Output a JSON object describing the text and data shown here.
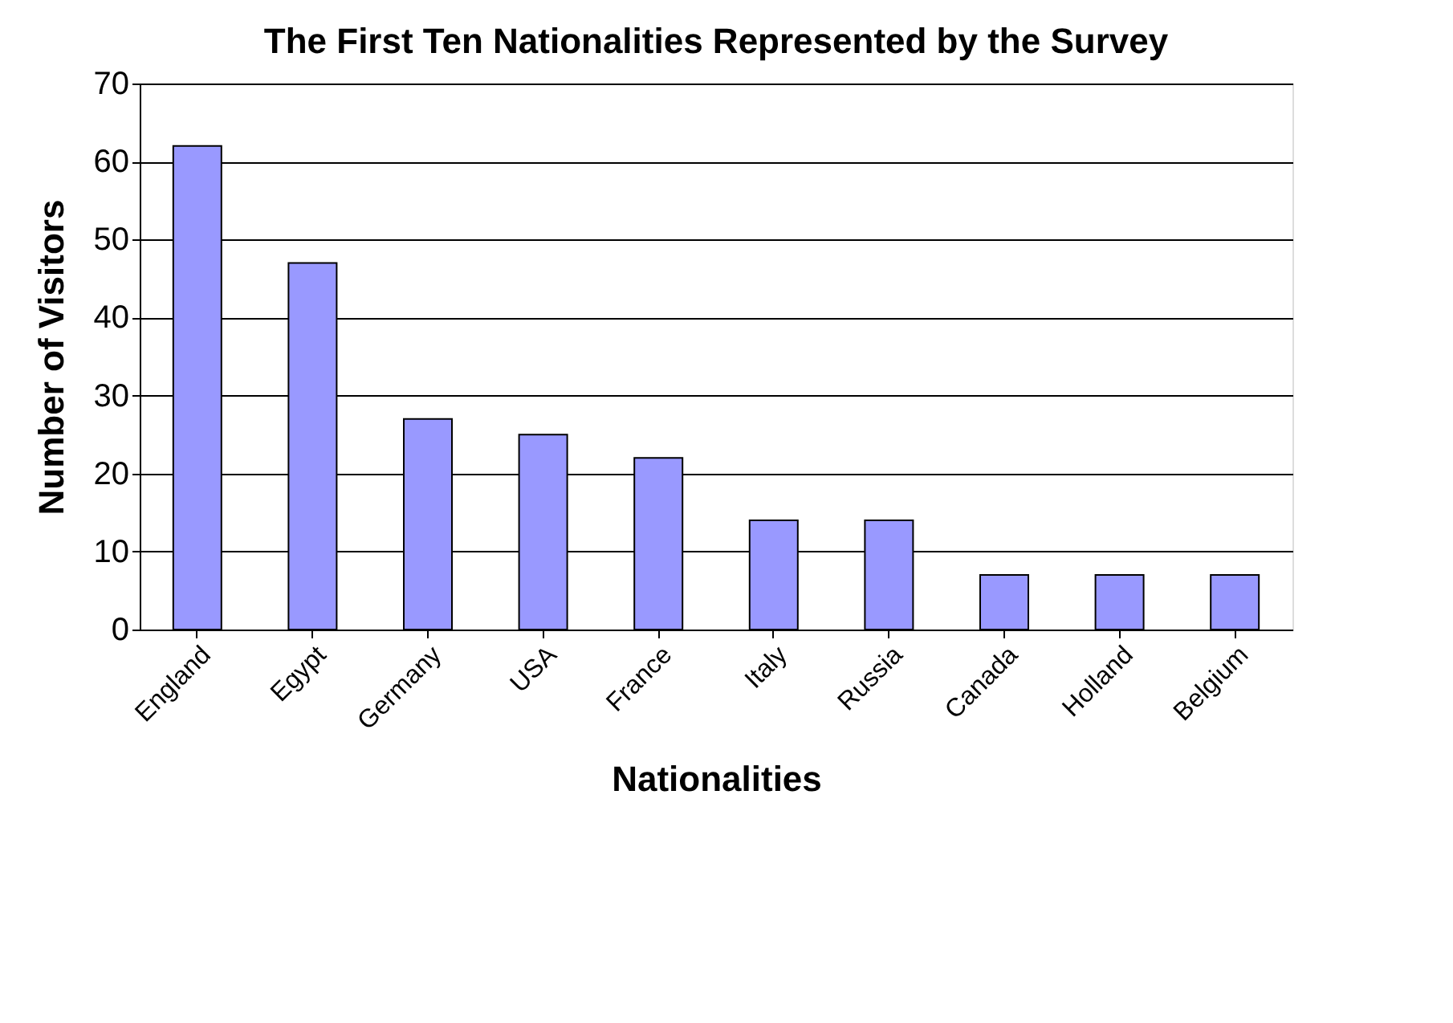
{
  "chart_data": {
    "type": "bar",
    "title": "The First Ten Nationalities Represented by the Survey",
    "xlabel": "Nationalities",
    "ylabel": "Number of Visitors",
    "categories": [
      "England",
      "Egypt",
      "Germany",
      "USA",
      "France",
      "Italy",
      "Russia",
      "Canada",
      "Holland",
      "Belgium"
    ],
    "values": [
      62,
      47,
      27,
      25,
      22,
      14,
      14,
      7,
      7,
      7
    ],
    "color": "#9999ff",
    "ylim": [
      0,
      70
    ],
    "yticks": [
      0,
      10,
      20,
      30,
      40,
      50,
      60,
      70
    ],
    "grid": "y"
  }
}
